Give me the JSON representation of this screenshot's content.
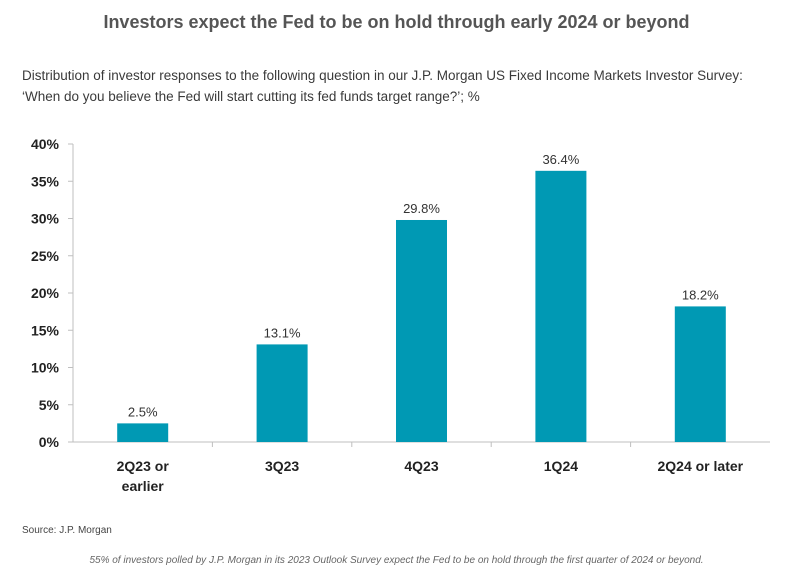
{
  "header": {
    "title": "Investors expect the Fed to be on hold through early 2024 or beyond",
    "subtitle_line1": "Distribution of investor responses to the following question in our J.P. Morgan US Fixed Income Markets Investor Survey:",
    "subtitle_line2": "‘When do you believe the Fed will start cutting its fed funds target range?’; %"
  },
  "chart_data": {
    "type": "bar",
    "title": "Investors expect the Fed to be on hold through early 2024 or beyond",
    "categories": [
      [
        "2Q23 or",
        "earlier"
      ],
      [
        "3Q23"
      ],
      [
        "4Q23"
      ],
      [
        "1Q24"
      ],
      [
        "2Q24 or later"
      ]
    ],
    "values": [
      2.5,
      13.1,
      29.8,
      36.4,
      18.2
    ],
    "data_labels": [
      "2.5%",
      "13.1%",
      "29.8%",
      "36.4%",
      "18.2%"
    ],
    "yticks": [
      0,
      5,
      10,
      15,
      20,
      25,
      30,
      35,
      40
    ],
    "ytick_labels": [
      "0%",
      "5%",
      "10%",
      "15%",
      "20%",
      "25%",
      "30%",
      "35%",
      "40%"
    ],
    "ylim": [
      0,
      40
    ],
    "grid": false,
    "legend": "none",
    "bar_color": "#0099b4"
  },
  "footer": {
    "source": "Source: J.P. Morgan",
    "note": "55% of investors polled by J.P. Morgan in its 2023 Outlook Survey expect the Fed to be on hold through the first quarter of 2024 or beyond."
  }
}
